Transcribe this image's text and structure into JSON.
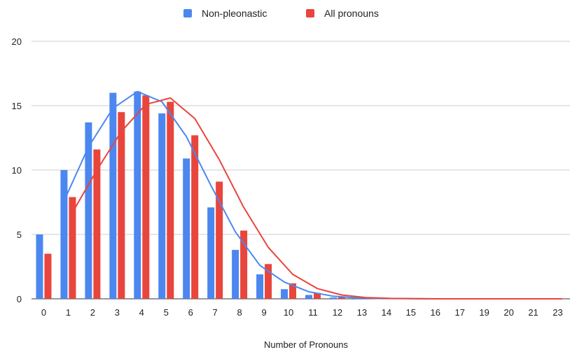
{
  "chart_data": {
    "type": "bar",
    "xlabel": "Number of Pronouns",
    "ylabel": "",
    "ylim": [
      0,
      20
    ],
    "yticks": [
      "0",
      "5",
      "10",
      "15",
      "20"
    ],
    "grid": true,
    "legend_position": "top",
    "categories": [
      "0",
      "1",
      "2",
      "3",
      "4",
      "5",
      "6",
      "7",
      "8",
      "9",
      "10",
      "11",
      "12",
      "13",
      "14",
      "15",
      "16",
      "17",
      "19",
      "20",
      "21",
      "23"
    ],
    "series": [
      {
        "name": "Non-pleonastic",
        "color": "#4c87f0",
        "values": [
          5.0,
          10.0,
          13.7,
          16.0,
          16.1,
          14.4,
          10.9,
          7.1,
          3.8,
          1.9,
          0.75,
          0.3,
          0.1,
          0.05,
          0.02,
          0.01,
          0.01,
          0.01,
          0.01,
          0.01,
          0.01,
          0.01
        ],
        "trend": [
          null,
          7.6,
          11.8,
          14.8,
          16.1,
          15.3,
          12.6,
          8.8,
          5.2,
          2.6,
          1.3,
          0.55,
          0.2,
          0.07,
          0.02,
          0.01,
          0.0,
          0.0,
          0.0,
          0.0,
          0.0,
          0.0
        ]
      },
      {
        "name": "All pronouns",
        "color": "#e8453c",
        "values": [
          3.5,
          7.9,
          11.6,
          14.5,
          15.8,
          15.3,
          12.7,
          9.1,
          5.3,
          2.7,
          1.2,
          0.45,
          0.15,
          0.05,
          0.02,
          0.01,
          0.01,
          0.01,
          0.01,
          0.01,
          0.01,
          0.01
        ],
        "trend": [
          null,
          6.7,
          10.0,
          13.0,
          15.1,
          15.6,
          14.0,
          10.8,
          7.1,
          4.0,
          1.9,
          0.8,
          0.3,
          0.1,
          0.03,
          0.01,
          0.0,
          0.0,
          0.0,
          0.0,
          0.0,
          0.0
        ]
      }
    ]
  }
}
